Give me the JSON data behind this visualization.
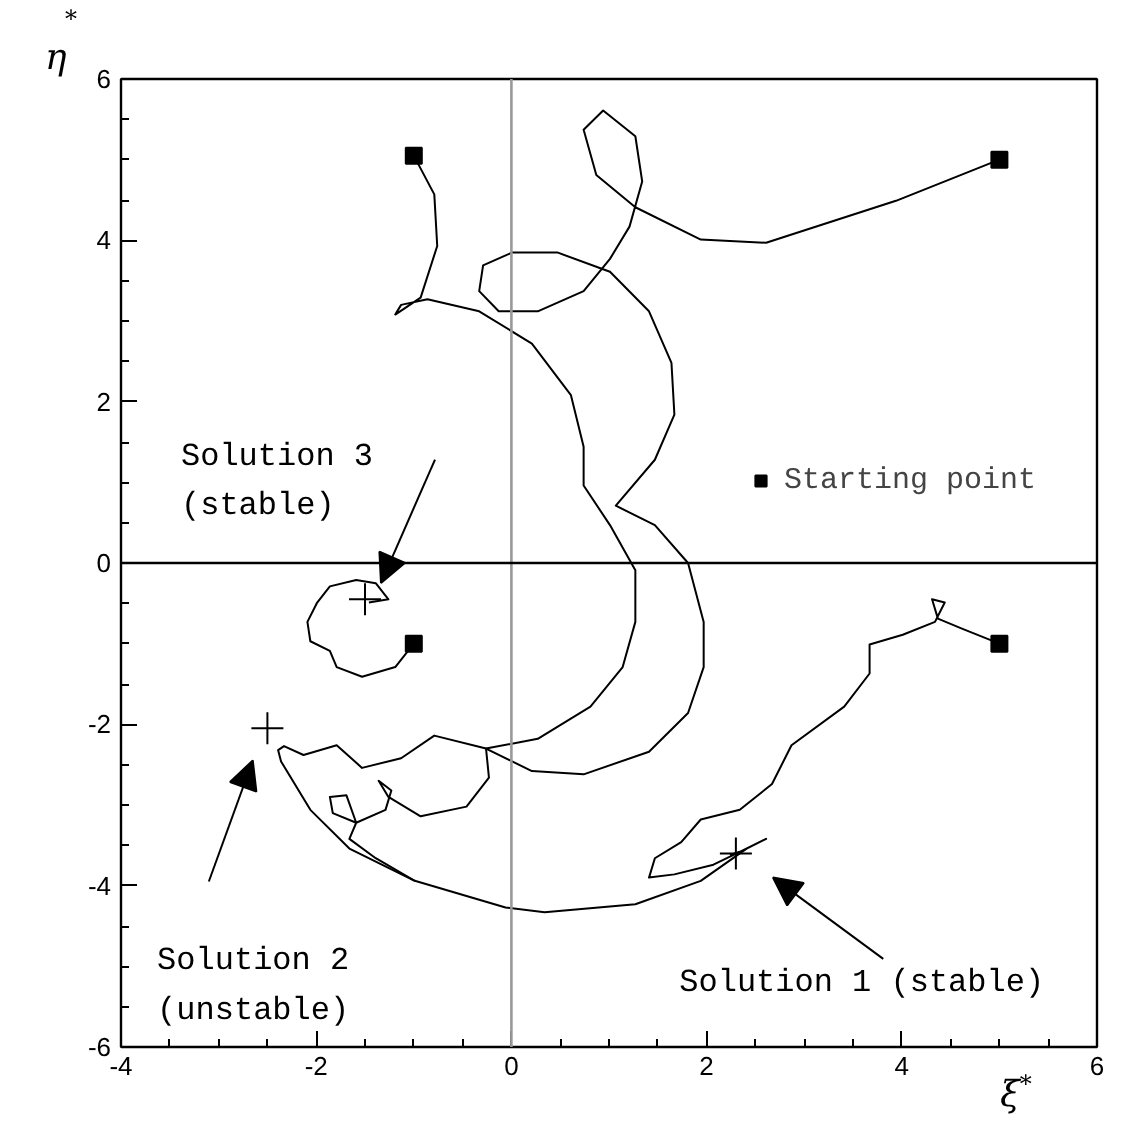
{
  "chart_data": {
    "type": "line",
    "xlabel": "ξ$^{*}$",
    "ylabel": "η$^{*}$",
    "xlim": [
      -4,
      6
    ],
    "ylim": [
      -6,
      6
    ],
    "xticks": [
      -4,
      -2,
      0,
      2,
      4,
      6
    ],
    "yticks": [
      -6,
      -4,
      -2,
      0,
      2,
      4,
      6
    ],
    "grid": false,
    "legend": "right",
    "line_style": "solid",
    "ref_lines": [
      {
        "axis": "x",
        "value": 0,
        "color": "#999999"
      },
      {
        "axis": "y",
        "value": 0,
        "color": "#000000"
      }
    ],
    "annotations": [
      {
        "text": "Solution 3\n(stable)",
        "x": -1.5,
        "y": -0.45
      },
      "Solution 2\n(unstable)",
      "Solution 1 (stable)"
    ],
    "series": [
      {
        "type": "line",
        "marker": "none",
        "color": "#000000",
        "x": [
          5,
          3.94,
          2.61,
          1.94,
          1.27,
          0.87,
          0.74,
          0.94,
          1.27,
          1.34,
          1.21,
          1.01,
          0.74,
          0.27,
          -0.13,
          -0.33,
          -0.29,
          0.01,
          0.47,
          1.01,
          1.41,
          1.64,
          1.67,
          1.47,
          1.07,
          1.47,
          1.81,
          1.97,
          1.97,
          1.81,
          1.41,
          0.74,
          0.21,
          -0.26,
          -0.79,
          -1.13,
          -1.53,
          -1.79,
          -2.13,
          -2.33,
          -2.39,
          -2.36,
          -2.06,
          -1.66,
          -0.99,
          -0.06,
          0.34,
          1.27,
          1.94,
          2.41,
          2.61,
          2.34,
          2.24
        ],
        "values": [
          5,
          4.49,
          3.97,
          4.01,
          4.41,
          4.81,
          5.37,
          5.61,
          5.29,
          4.73,
          4.17,
          3.77,
          3.37,
          3.12,
          3.12,
          3.37,
          3.69,
          3.85,
          3.85,
          3.61,
          3.12,
          2.48,
          1.84,
          1.28,
          0.71,
          0.47,
          0,
          -0.73,
          -1.29,
          -1.86,
          -2.34,
          -2.62,
          -2.58,
          -2.3,
          -2.14,
          -2.42,
          -2.54,
          -2.26,
          -2.38,
          -2.27,
          -2.32,
          -2.46,
          -3.06,
          -3.54,
          -3.94,
          -4.27,
          -4.33,
          -4.23,
          -3.94,
          -3.54,
          -3.42,
          -3.58,
          -3.62
        ]
      },
      {
        "marker": "none",
        "color": "#000000",
        "x": [
          -1,
          -0.79,
          -0.76,
          -0.93,
          -1.19,
          -1.13,
          -0.86,
          -0.33,
          0.21,
          0.61,
          0.74,
          0.74,
          1.01,
          1.27,
          1.27,
          1.14,
          0.81,
          0.27,
          -0.26,
          -0.23,
          -0.46,
          -0.93,
          -1.26,
          -1.36,
          -1.23,
          -1.29,
          -1.59,
          -1.83,
          -1.86,
          -1.69,
          -1.59,
          -1.66,
          -1.39,
          -0.99
        ],
        "values": [
          5.05,
          4.57,
          3.93,
          3.29,
          3.08,
          3.2,
          3.27,
          3.12,
          2.72,
          2.08,
          1.44,
          0.96,
          0.47,
          -0.09,
          -0.73,
          -1.29,
          -1.78,
          -2.18,
          -2.3,
          -2.66,
          -3.02,
          -3.14,
          -2.9,
          -2.7,
          -2.82,
          -3.06,
          -3.22,
          -3.1,
          -2.9,
          -2.88,
          -3.22,
          -3.42,
          -3.66,
          -3.94
        ]
      },
      {
        "marker": "none",
        "color": "#000000",
        "x": [
          5,
          4.61,
          4.37,
          4.31,
          4.44,
          4.34,
          4.01,
          3.67,
          3.67,
          3.41,
          2.87,
          2.67,
          2.34,
          1.94,
          1.74,
          1.47,
          1.41,
          1.67,
          2.07,
          2.34
        ],
        "values": [
          -1,
          -0.81,
          -0.69,
          -0.45,
          -0.49,
          -0.73,
          -0.89,
          -1.01,
          -1.37,
          -1.78,
          -2.26,
          -2.74,
          -3.06,
          -3.18,
          -3.46,
          -3.66,
          -3.9,
          -3.86,
          -3.74,
          -3.58
        ]
      },
      {
        "marker": "none",
        "color": "#000000",
        "x": [
          -1,
          -1.19,
          -1.53,
          -1.79,
          -1.86,
          -2.06,
          -2.09,
          -1.99,
          -1.86,
          -1.59,
          -1.39,
          -1.26,
          -1.46
        ],
        "values": [
          -1,
          -1.29,
          -1.41,
          -1.29,
          -1.09,
          -0.97,
          -0.73,
          -0.49,
          -0.29,
          -0.21,
          -0.25,
          -0.45,
          -0.49
        ]
      },
      {
        "type": "scatter",
        "marker": "square",
        "name": "Starting point",
        "color": "#000000",
        "x": [
          5,
          -1,
          5,
          -1
        ],
        "values": [
          5,
          5.05,
          -1,
          -1
        ]
      },
      {
        "type": "scatter",
        "marker": "cross",
        "color": "#000000",
        "x": [
          2.3,
          -2.5,
          -1.5
        ],
        "values": [
          -3.6,
          -2.05,
          -0.45
        ]
      }
    ]
  }
}
